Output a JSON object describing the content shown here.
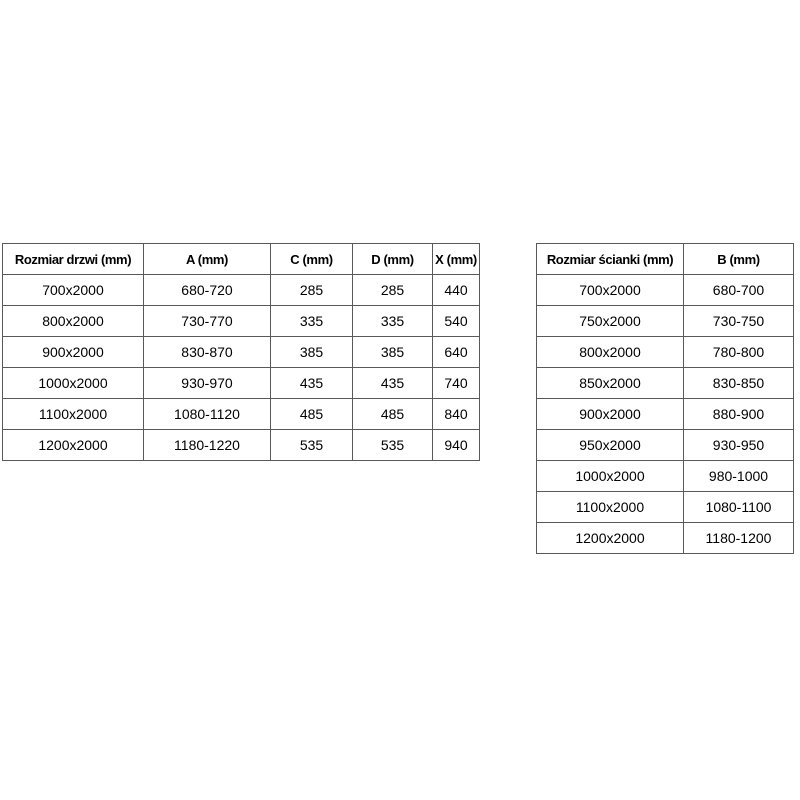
{
  "page": {
    "background": "#ffffff",
    "table_border_color": "#595959",
    "text_color": "#000000"
  },
  "door_table": {
    "headers": [
      "Rozmiar drzwi (mm)",
      "A (mm)",
      "C (mm)",
      "D (mm)",
      "X (mm)"
    ],
    "rows": [
      [
        "700x2000",
        "680-720",
        "285",
        "285",
        "440"
      ],
      [
        "800x2000",
        "730-770",
        "335",
        "335",
        "540"
      ],
      [
        "900x2000",
        "830-870",
        "385",
        "385",
        "640"
      ],
      [
        "1000x2000",
        "930-970",
        "435",
        "435",
        "740"
      ],
      [
        "1100x2000",
        "1080-1120",
        "485",
        "485",
        "840"
      ],
      [
        "1200x2000",
        "1180-1220",
        "535",
        "535",
        "940"
      ]
    ]
  },
  "wall_table": {
    "headers": [
      "Rozmiar ścianki (mm)",
      "B (mm)"
    ],
    "rows": [
      [
        "700x2000",
        "680-700"
      ],
      [
        "750x2000",
        "730-750"
      ],
      [
        "800x2000",
        "780-800"
      ],
      [
        "850x2000",
        "830-850"
      ],
      [
        "900x2000",
        "880-900"
      ],
      [
        "950x2000",
        "930-950"
      ],
      [
        "1000x2000",
        "980-1000"
      ],
      [
        "1100x2000",
        "1080-1100"
      ],
      [
        "1200x2000",
        "1180-1200"
      ]
    ]
  }
}
